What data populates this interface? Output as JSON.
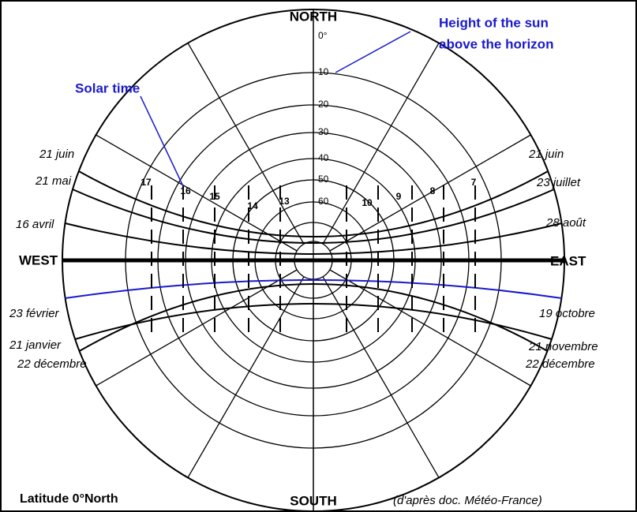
{
  "header": {
    "north": "NORTH",
    "south": "SOUTH",
    "west": "WEST",
    "east": "EAST"
  },
  "annotations": {
    "height_line1": "Height of the sun",
    "height_line2": "above the horizon",
    "solar_time": "Solar time"
  },
  "altitudes": [
    "0°",
    "10",
    "20",
    "30",
    "40",
    "50",
    "60"
  ],
  "hours": [
    "17",
    "16",
    "15",
    "14",
    "13",
    "10",
    "9",
    "8",
    "7"
  ],
  "dates_left": [
    "21 juin",
    "21 mai",
    "16 avril",
    "23 février",
    "21 janvier",
    "22 décembre"
  ],
  "dates_right": [
    "21 juin",
    "23 juillet",
    "28 août",
    "19 octobre",
    "21 novembre",
    "22 décembre"
  ],
  "footer": {
    "latitude": "Latitude 0°North",
    "source": "(d'après doc. Météo-France)"
  }
}
